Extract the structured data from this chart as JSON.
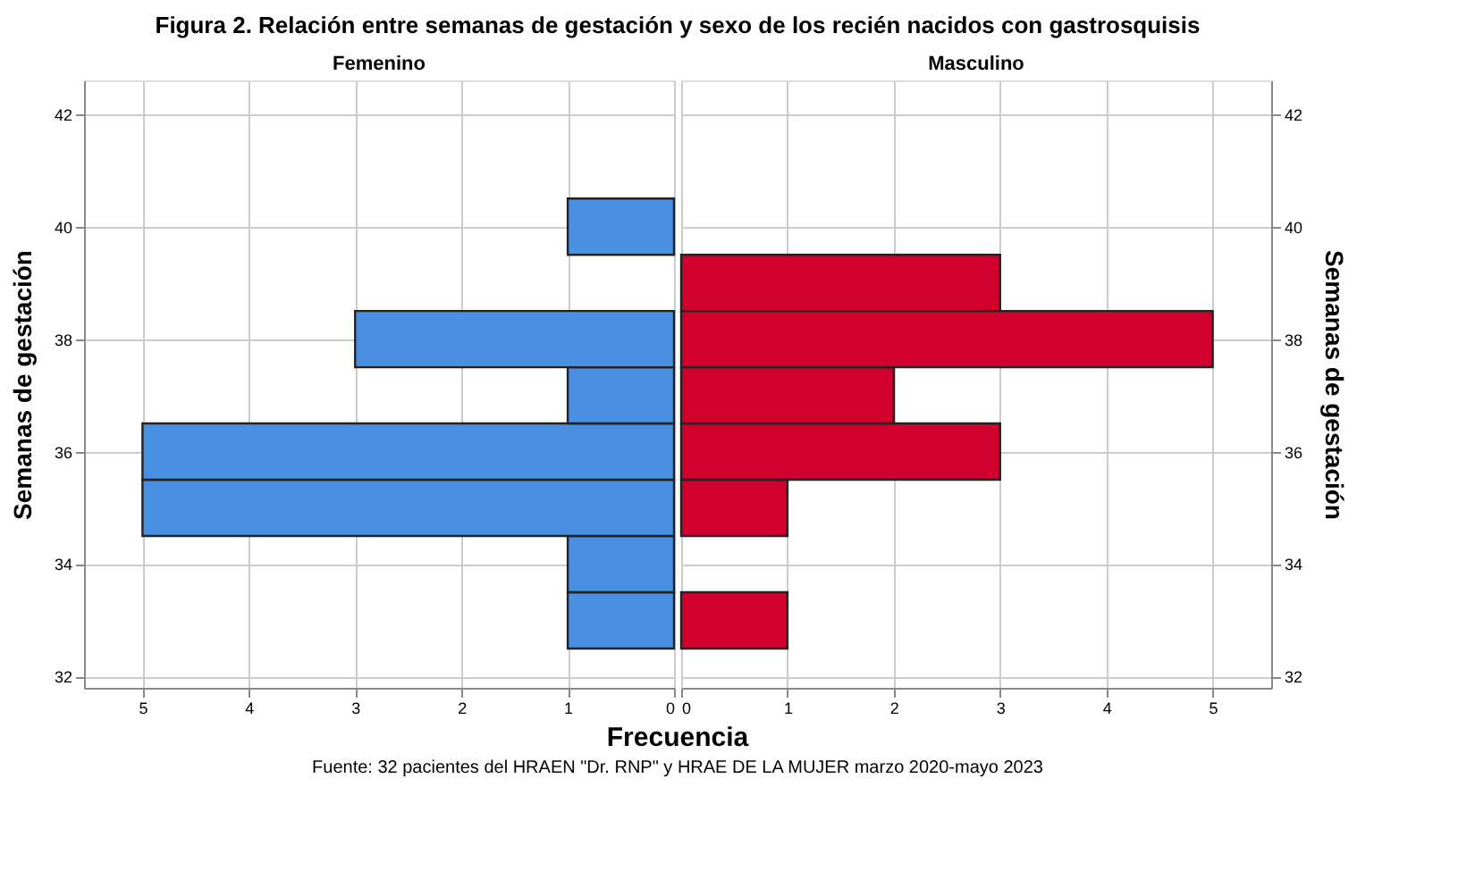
{
  "chart_data": [
    {
      "type": "histogram",
      "orientation": "horizontal",
      "title": "Figura 2. Relación entre semanas de gestación y sexo de los recién nacidos con gastrosquisis",
      "xlabel": "Frecuencia",
      "ylabel": "Semanas de gestación",
      "annotations": [
        "Fuente: 32 pacientes del HRAEN \"Dr. RNP\" y HRAE DE LA MUJER marzo 2020-mayo  2023"
      ],
      "bins": [
        32.5,
        33.5,
        34.5,
        35.5,
        36.5,
        37.5,
        38.5,
        39.5,
        40.5
      ],
      "series": [
        {
          "name": "Femenino",
          "color": "#4a90e2",
          "values": [
            1,
            1,
            5,
            5,
            1,
            3,
            0,
            1
          ]
        }
      ],
      "xlim": [
        5.55,
        0
      ],
      "xticks": [
        5,
        4,
        3,
        2,
        1,
        0
      ],
      "ylim": [
        31.8,
        42.6
      ],
      "yticks": [
        32,
        34,
        36,
        38,
        40,
        42
      ],
      "grid": true
    },
    {
      "type": "histogram",
      "orientation": "horizontal",
      "ylabel": "Semanas de gestación",
      "bins": [
        32.5,
        33.5,
        34.5,
        35.5,
        36.5,
        37.5,
        38.5,
        39.5,
        40.5
      ],
      "series": [
        {
          "name": "Masculino",
          "color": "#d2002d",
          "values": [
            1,
            0,
            1,
            3,
            2,
            5,
            3,
            0
          ]
        }
      ],
      "xlim": [
        0,
        5.55
      ],
      "xticks": [
        0,
        1,
        2,
        3,
        4,
        5
      ],
      "ylim": [
        31.8,
        42.6
      ],
      "yticks": [
        32,
        34,
        36,
        38,
        40,
        42
      ],
      "grid": true
    }
  ]
}
